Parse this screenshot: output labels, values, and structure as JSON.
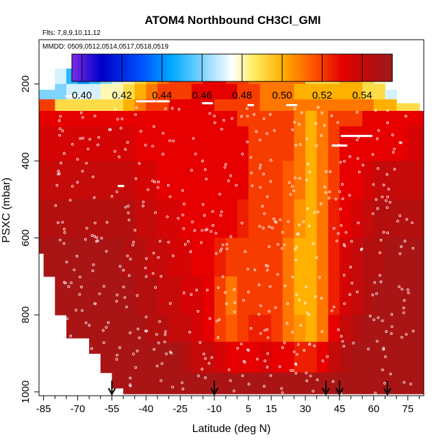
{
  "chart_data": {
    "type": "heatmap",
    "title": "ATOM4 Northbound CH3Cl_GMI",
    "flights_note": "Flts: 7,8,9,10,11,12",
    "dates_note": "MMDD: 0509,0512,0514,0517,0518,0519",
    "xlabel": "Latitude (deg N)",
    "ylabel": "PSXC (mbar)",
    "x_ticks": [
      "-85",
      "-70",
      "-55",
      "-40",
      "-25",
      "-10",
      "5",
      "15",
      "30",
      "45",
      "60",
      "75"
    ],
    "x_tick_values": [
      -85,
      -70,
      -55,
      -40,
      -25,
      -10,
      5,
      15,
      30,
      45,
      60,
      75
    ],
    "x_minor_ticks": [
      -80,
      -75,
      -65,
      -60,
      -50,
      -45,
      -35,
      -30,
      -20,
      -15,
      -5,
      0,
      10,
      20,
      25,
      35,
      40,
      50,
      55,
      65,
      70,
      80
    ],
    "y_ticks": [
      "200",
      "400",
      "600",
      "800",
      "1000"
    ],
    "y_tick_values": [
      200,
      400,
      600,
      800,
      1000
    ],
    "xlim": [
      -87,
      82
    ],
    "ylim": [
      1010,
      85
    ],
    "colorbar": {
      "ticks": [
        "0.40",
        "0.42",
        "0.44",
        "0.46",
        "0.48",
        "0.50",
        "0.52",
        "0.54"
      ],
      "tick_values": [
        0.4,
        0.42,
        0.44,
        0.46,
        0.48,
        0.5,
        0.52,
        0.54
      ],
      "range": [
        0.395,
        0.555
      ],
      "stops": [
        {
          "v": 0.395,
          "color": "#7b2be8"
        },
        {
          "v": 0.41,
          "color": "#0000c8"
        },
        {
          "v": 0.43,
          "color": "#0052ff"
        },
        {
          "v": 0.445,
          "color": "#00aaff"
        },
        {
          "v": 0.46,
          "color": "#7fd4ff"
        },
        {
          "v": 0.475,
          "color": "#ffffff"
        },
        {
          "v": 0.485,
          "color": "#fff06a"
        },
        {
          "v": 0.5,
          "color": "#ffb000"
        },
        {
          "v": 0.515,
          "color": "#ff5a00"
        },
        {
          "v": 0.53,
          "color": "#e60000"
        },
        {
          "v": 0.545,
          "color": "#b40f0f"
        },
        {
          "v": 0.555,
          "color": "#9e1b1b"
        }
      ]
    },
    "latitude_band_edges": [
      -87,
      -85,
      -80,
      -75,
      -70,
      -65,
      -60,
      -55,
      -50,
      -45,
      -40,
      -35,
      -30,
      -25,
      -20,
      -15,
      -10,
      -5,
      0,
      5,
      10,
      15,
      20,
      25,
      30,
      35,
      40,
      45,
      50,
      55,
      60,
      65,
      70,
      75,
      80,
      82
    ],
    "column_bottom_pressure": [
      640,
      700,
      800,
      860,
      860,
      900,
      950,
      990,
      1005,
      1005,
      1005,
      1005,
      1005,
      1005,
      1005,
      1005,
      1005,
      1005,
      1005,
      1005,
      1005,
      1005,
      1005,
      1005,
      1005,
      1005,
      1005,
      1005,
      1005,
      1005,
      1005,
      1005,
      1005,
      1005,
      1005
    ],
    "column_top_pressure": [
      215,
      215,
      160,
      160,
      160,
      160,
      160,
      160,
      160,
      160,
      160,
      160,
      160,
      160,
      160,
      160,
      160,
      160,
      160,
      160,
      160,
      160,
      160,
      160,
      160,
      160,
      160,
      160,
      160,
      160,
      160,
      215,
      250,
      250,
      270
    ],
    "pressure_layers": [
      {
        "p_top": 160,
        "p_bottom": 200,
        "values": [
          0.52,
          0.52,
          0.47,
          0.45,
          0.44,
          0.45,
          0.46,
          0.47,
          0.48,
          0.49,
          0.5,
          0.51,
          0.52,
          0.52,
          0.52,
          0.53,
          0.53,
          0.52,
          0.52,
          0.51,
          0.51,
          0.51,
          0.51,
          0.51,
          0.49,
          0.49,
          0.49,
          0.5,
          0.5,
          0.49,
          0.48,
          0.46,
          0.44,
          0.52,
          0.52
        ]
      },
      {
        "p_top": 200,
        "p_bottom": 240,
        "values": [
          0.46,
          0.46,
          0.46,
          0.47,
          0.47,
          0.47,
          0.48,
          0.48,
          0.49,
          0.5,
          0.51,
          0.52,
          0.52,
          0.52,
          0.53,
          0.53,
          0.53,
          0.53,
          0.52,
          0.52,
          0.51,
          0.51,
          0.51,
          0.5,
          0.5,
          0.5,
          0.5,
          0.5,
          0.5,
          0.49,
          0.49,
          0.47,
          0.46,
          0.47,
          0.52
        ]
      },
      {
        "p_top": 240,
        "p_bottom": 270,
        "values": [
          0.52,
          0.52,
          0.49,
          0.49,
          0.49,
          0.49,
          0.49,
          0.49,
          0.5,
          0.51,
          0.52,
          0.52,
          0.53,
          0.53,
          0.53,
          0.53,
          0.52,
          0.52,
          0.52,
          0.52,
          0.51,
          0.51,
          0.51,
          0.51,
          0.51,
          0.51,
          0.51,
          0.51,
          0.51,
          0.51,
          0.5,
          0.5,
          0.49,
          0.49,
          0.51
        ]
      },
      {
        "p_top": 270,
        "p_bottom": 310,
        "values": [
          0.53,
          0.53,
          0.53,
          0.53,
          0.53,
          0.53,
          0.53,
          0.53,
          0.53,
          0.53,
          0.53,
          0.53,
          0.53,
          0.53,
          0.53,
          0.53,
          0.53,
          0.53,
          0.52,
          0.52,
          0.52,
          0.52,
          0.52,
          0.51,
          0.5,
          0.51,
          0.52,
          0.52,
          0.52,
          0.53,
          0.53,
          0.53,
          0.53,
          0.53,
          0.53
        ]
      },
      {
        "p_top": 310,
        "p_bottom": 400,
        "values": [
          0.535,
          0.535,
          0.535,
          0.535,
          0.535,
          0.535,
          0.535,
          0.535,
          0.535,
          0.53,
          0.53,
          0.53,
          0.53,
          0.53,
          0.53,
          0.53,
          0.53,
          0.53,
          0.53,
          0.52,
          0.52,
          0.52,
          0.52,
          0.51,
          0.5,
          0.51,
          0.52,
          0.53,
          0.53,
          0.53,
          0.53,
          0.53,
          0.53,
          0.535,
          0.535
        ]
      },
      {
        "p_top": 400,
        "p_bottom": 500,
        "values": [
          0.54,
          0.54,
          0.54,
          0.54,
          0.54,
          0.54,
          0.54,
          0.54,
          0.54,
          0.535,
          0.535,
          0.53,
          0.53,
          0.53,
          0.53,
          0.53,
          0.53,
          0.53,
          0.53,
          0.52,
          0.52,
          0.52,
          0.515,
          0.51,
          0.5,
          0.51,
          0.52,
          0.53,
          0.53,
          0.535,
          0.54,
          0.54,
          0.54,
          0.54,
          0.54
        ]
      },
      {
        "p_top": 500,
        "p_bottom": 600,
        "values": [
          0.545,
          0.545,
          0.545,
          0.545,
          0.545,
          0.545,
          0.545,
          0.545,
          0.545,
          0.54,
          0.54,
          0.535,
          0.535,
          0.53,
          0.53,
          0.53,
          0.53,
          0.53,
          0.525,
          0.52,
          0.52,
          0.52,
          0.515,
          0.505,
          0.5,
          0.51,
          0.525,
          0.53,
          0.535,
          0.54,
          0.545,
          0.545,
          0.545,
          0.545,
          0.545
        ]
      },
      {
        "p_top": 600,
        "p_bottom": 700,
        "values": [
          0.55,
          0.55,
          0.55,
          0.55,
          0.55,
          0.55,
          0.55,
          0.55,
          0.545,
          0.545,
          0.54,
          0.54,
          0.535,
          0.535,
          0.53,
          0.53,
          0.525,
          0.52,
          0.52,
          0.52,
          0.52,
          0.52,
          0.51,
          0.5,
          0.5,
          0.51,
          0.525,
          0.535,
          0.54,
          0.545,
          0.545,
          0.55,
          0.55,
          0.55,
          0.55
        ]
      },
      {
        "p_top": 700,
        "p_bottom": 800,
        "values": [
          0.55,
          0.55,
          0.55,
          0.55,
          0.55,
          0.55,
          0.55,
          0.55,
          0.55,
          0.545,
          0.545,
          0.54,
          0.54,
          0.535,
          0.535,
          0.53,
          0.52,
          0.51,
          0.52,
          0.52,
          0.52,
          0.52,
          0.51,
          0.5,
          0.5,
          0.51,
          0.525,
          0.535,
          0.54,
          0.545,
          0.55,
          0.55,
          0.55,
          0.55,
          0.55
        ]
      },
      {
        "p_top": 800,
        "p_bottom": 870,
        "values": [
          0.55,
          0.55,
          0.55,
          0.55,
          0.55,
          0.55,
          0.55,
          0.55,
          0.55,
          0.55,
          0.545,
          0.545,
          0.54,
          0.54,
          0.535,
          0.53,
          0.52,
          0.515,
          0.52,
          0.525,
          0.525,
          0.52,
          0.51,
          0.505,
          0.5,
          0.51,
          0.53,
          0.54,
          0.545,
          0.55,
          0.55,
          0.55,
          0.55,
          0.55,
          0.55
        ]
      },
      {
        "p_top": 870,
        "p_bottom": 950,
        "values": [
          0.55,
          0.55,
          0.55,
          0.55,
          0.55,
          0.55,
          0.55,
          0.55,
          0.55,
          0.55,
          0.55,
          0.55,
          0.55,
          0.545,
          0.54,
          0.54,
          0.535,
          0.53,
          0.53,
          0.53,
          0.535,
          0.53,
          0.53,
          0.525,
          0.525,
          0.53,
          0.54,
          0.545,
          0.55,
          0.55,
          0.55,
          0.55,
          0.55,
          0.55,
          0.55
        ]
      },
      {
        "p_top": 950,
        "p_bottom": 1005,
        "values": [
          0.55,
          0.55,
          0.55,
          0.55,
          0.55,
          0.55,
          0.55,
          0.55,
          0.55,
          0.55,
          0.55,
          0.55,
          0.55,
          0.55,
          0.55,
          0.55,
          0.55,
          0.55,
          0.55,
          0.55,
          0.55,
          0.55,
          0.55,
          0.55,
          0.55,
          0.55,
          0.55,
          0.55,
          0.55,
          0.55,
          0.55,
          0.55,
          0.55,
          0.55,
          0.55
        ]
      }
    ],
    "flight_level_segments": [
      {
        "lat_start": -75,
        "lat_end": -64,
        "p": 232
      },
      {
        "lat_start": -44,
        "lat_end": -36,
        "p": 245
      },
      {
        "lat_start": -35,
        "lat_end": -30,
        "p": 245
      },
      {
        "lat_start": -15,
        "lat_end": -11,
        "p": 250
      },
      {
        "lat_start": 5,
        "lat_end": 7,
        "p": 255
      },
      {
        "lat_start": 22,
        "lat_end": 26,
        "p": 255
      },
      {
        "lat_start": 46,
        "lat_end": 59,
        "p": 335
      },
      {
        "lat_start": 42,
        "lat_end": 48,
        "p": 360
      },
      {
        "lat_start": 68,
        "lat_end": 74,
        "p": 212
      },
      {
        "lat_start": -52,
        "lat_end": -50,
        "p": 465
      }
    ],
    "profile_arrows_lat": [
      -55,
      -10,
      39,
      45,
      66
    ]
  }
}
